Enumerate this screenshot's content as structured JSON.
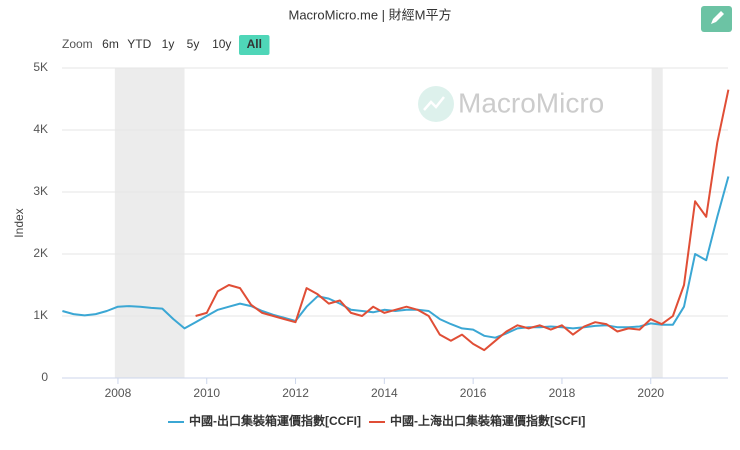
{
  "chart_data": {
    "type": "line",
    "title": "MacroMicro.me | 財經M平方",
    "y_label": "Index",
    "watermark": "MacroMicro",
    "range_selector": {
      "label": "Zoom",
      "buttons": [
        "6m",
        "YTD",
        "1y",
        "5y",
        "10y",
        "All"
      ],
      "active": 5
    },
    "x": [
      2006.75,
      2007.0,
      2007.25,
      2007.5,
      2007.75,
      2008.0,
      2008.25,
      2008.5,
      2008.75,
      2009.0,
      2009.25,
      2009.5,
      2009.75,
      2010.0,
      2010.25,
      2010.5,
      2010.75,
      2011.0,
      2011.25,
      2011.5,
      2011.75,
      2012.0,
      2012.25,
      2012.5,
      2012.75,
      2013.0,
      2013.25,
      2013.5,
      2013.75,
      2014.0,
      2014.25,
      2014.5,
      2014.75,
      2015.0,
      2015.25,
      2015.5,
      2015.75,
      2016.0,
      2016.25,
      2016.5,
      2016.75,
      2017.0,
      2017.25,
      2017.5,
      2017.75,
      2018.0,
      2018.25,
      2018.5,
      2018.75,
      2019.0,
      2019.25,
      2019.5,
      2019.75,
      2020.0,
      2020.25,
      2020.5,
      2020.75,
      2021.0,
      2021.25,
      2021.5,
      2021.75
    ],
    "series": [
      {
        "name": "中國-出口集裝箱運價指數[CCFI]",
        "color": "#3ba7d4",
        "values": [
          1080,
          1030,
          1010,
          1030,
          1080,
          1150,
          1160,
          1150,
          1130,
          1120,
          950,
          800,
          900,
          1000,
          1100,
          1150,
          1200,
          1160,
          1080,
          1020,
          970,
          920,
          1150,
          1320,
          1280,
          1200,
          1100,
          1080,
          1060,
          1100,
          1080,
          1100,
          1100,
          1080,
          950,
          870,
          800,
          780,
          680,
          650,
          720,
          800,
          820,
          820,
          830,
          820,
          800,
          820,
          840,
          850,
          820,
          820,
          830,
          880,
          860,
          860,
          1150,
          2000,
          1900,
          2600,
          3250
        ]
      },
      {
        "name": "中國-上海出口集裝箱運價指數[SCFI]",
        "color": "#e04e36",
        "values": [
          null,
          null,
          null,
          null,
          null,
          null,
          null,
          null,
          null,
          null,
          null,
          null,
          1000,
          1050,
          1400,
          1500,
          1450,
          1180,
          1050,
          1000,
          950,
          900,
          1450,
          1350,
          1200,
          1250,
          1050,
          1000,
          1150,
          1050,
          1100,
          1150,
          1100,
          1000,
          700,
          600,
          700,
          550,
          450,
          600,
          750,
          850,
          800,
          850,
          780,
          850,
          700,
          830,
          900,
          870,
          750,
          800,
          780,
          950,
          870,
          1000,
          1500,
          2850,
          2600,
          3800,
          4650
        ]
      }
    ],
    "shaded_ranges": [
      [
        2007.93,
        2009.5
      ],
      [
        2020.02,
        2020.27
      ]
    ],
    "xlim": [
      2006.74,
      2021.74
    ],
    "xticks": [
      2008,
      2010,
      2012,
      2014,
      2016,
      2018,
      2020
    ],
    "ylim": [
      0,
      5000
    ],
    "yticks": [
      0,
      {
        "value": 1000,
        "label": "1K"
      },
      {
        "value": 2000,
        "label": "2K"
      },
      {
        "value": 3000,
        "label": "3K"
      },
      {
        "value": 4000,
        "label": "4K"
      },
      {
        "value": 5000,
        "label": "5K"
      }
    ],
    "grid": true
  }
}
